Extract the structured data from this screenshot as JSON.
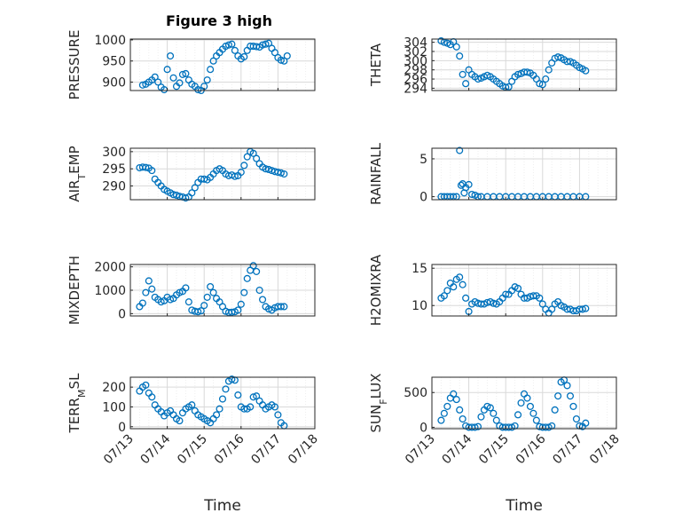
{
  "title": "Figure 3 high",
  "xlabel": "Time",
  "colors": {
    "marker": "#0072BD",
    "axis": "#262626",
    "grid": "#d9d9d9"
  },
  "chart_data": [
    {
      "type": "scatter",
      "ylabel": "PRESSURE",
      "yticks": [
        "900",
        "950",
        "1000"
      ],
      "ylim": [
        880,
        1002
      ],
      "yticks_values": [
        900,
        950,
        1000
      ],
      "x": [
        "07/13 08:00",
        "07/13 10:00",
        "07/13 12:00",
        "07/13 14:00",
        "07/13 16:00",
        "07/13 18:00",
        "07/13 20:00",
        "07/13 22:00",
        "07/14 00:00",
        "07/14 02:00",
        "07/14 04:00",
        "07/14 06:00",
        "07/14 08:00",
        "07/14 10:00",
        "07/14 12:00",
        "07/14 14:00",
        "07/14 16:00",
        "07/14 18:00",
        "07/14 20:00",
        "07/14 22:00",
        "07/15 00:00",
        "07/15 02:00",
        "07/15 04:00",
        "07/15 06:00",
        "07/15 08:00",
        "07/15 10:00",
        "07/15 12:00",
        "07/15 14:00",
        "07/15 16:00",
        "07/15 18:00",
        "07/15 20:00",
        "07/15 22:00",
        "07/16 00:00",
        "07/16 02:00",
        "07/16 04:00",
        "07/16 06:00",
        "07/16 08:00",
        "07/16 10:00",
        "07/16 12:00",
        "07/16 14:00",
        "07/16 16:00",
        "07/16 18:00",
        "07/16 20:00",
        "07/16 22:00",
        "07/17 00:00",
        "07/17 02:00",
        "07/17 04:00",
        "07/17 06:00"
      ],
      "y": [
        893,
        895,
        900,
        905,
        912,
        900,
        888,
        882,
        930,
        962,
        910,
        890,
        898,
        918,
        920,
        905,
        895,
        890,
        882,
        880,
        890,
        905,
        930,
        950,
        962,
        970,
        978,
        985,
        988,
        990,
        975,
        962,
        955,
        960,
        975,
        985,
        985,
        984,
        983,
        988,
        990,
        992,
        980,
        970,
        958,
        952,
        950,
        962
      ]
    },
    {
      "type": "scatter",
      "ylabel": "THETA",
      "yticks": [
        "294",
        "296",
        "298",
        "300",
        "302",
        "304"
      ],
      "ylim": [
        293.5,
        304.7
      ],
      "yticks_values": [
        294,
        296,
        298,
        300,
        302,
        304
      ],
      "x": [
        "07/13 06:00",
        "07/13 08:00",
        "07/13 10:00",
        "07/13 12:00",
        "07/13 14:00",
        "07/13 16:00",
        "07/13 18:00",
        "07/13 20:00",
        "07/13 22:00",
        "07/14 00:00",
        "07/14 02:00",
        "07/14 04:00",
        "07/14 06:00",
        "07/14 08:00",
        "07/14 10:00",
        "07/14 12:00",
        "07/14 14:00",
        "07/14 16:00",
        "07/14 18:00",
        "07/14 20:00",
        "07/14 22:00",
        "07/15 00:00",
        "07/15 02:00",
        "07/15 04:00",
        "07/15 06:00",
        "07/15 08:00",
        "07/15 10:00",
        "07/15 12:00",
        "07/15 14:00",
        "07/15 16:00",
        "07/15 18:00",
        "07/15 20:00",
        "07/15 22:00",
        "07/16 00:00",
        "07/16 02:00",
        "07/16 04:00",
        "07/16 06:00",
        "07/16 08:00",
        "07/16 10:00",
        "07/16 12:00",
        "07/16 14:00",
        "07/16 16:00",
        "07/16 18:00",
        "07/16 20:00",
        "07/16 22:00",
        "07/17 00:00",
        "07/17 02:00",
        "07/17 04:00"
      ],
      "y": [
        304.3,
        304,
        303.8,
        303.5,
        304.1,
        303,
        301,
        297,
        295,
        298,
        297,
        296.5,
        296,
        296.2,
        296.5,
        296.8,
        296.5,
        296,
        295.5,
        295,
        294.5,
        294.2,
        294.3,
        295.5,
        296.5,
        297,
        297.2,
        297.5,
        297.5,
        297.3,
        296.8,
        296,
        295,
        294.8,
        296,
        298,
        299.5,
        300.5,
        300.8,
        300.6,
        300.2,
        299.8,
        299.8,
        299.5,
        299,
        298.5,
        298.2,
        297.8
      ]
    },
    {
      "type": "scatter",
      "ylabel": "AIR_TEMP",
      "yticks": [
        "290",
        "295",
        "300"
      ],
      "ylim": [
        286,
        301
      ],
      "yticks_values": [
        290,
        295,
        300
      ],
      "x": [
        "07/13 06:00",
        "07/13 08:00",
        "07/13 10:00",
        "07/13 12:00",
        "07/13 14:00",
        "07/13 16:00",
        "07/13 18:00",
        "07/13 20:00",
        "07/13 22:00",
        "07/14 00:00",
        "07/14 02:00",
        "07/14 04:00",
        "07/14 06:00",
        "07/14 08:00",
        "07/14 10:00",
        "07/14 12:00",
        "07/14 14:00",
        "07/14 16:00",
        "07/14 18:00",
        "07/14 20:00",
        "07/14 22:00",
        "07/15 00:00",
        "07/15 02:00",
        "07/15 04:00",
        "07/15 06:00",
        "07/15 08:00",
        "07/15 10:00",
        "07/15 12:00",
        "07/15 14:00",
        "07/15 16:00",
        "07/15 18:00",
        "07/15 20:00",
        "07/15 22:00",
        "07/16 00:00",
        "07/16 02:00",
        "07/16 04:00",
        "07/16 06:00",
        "07/16 08:00",
        "07/16 10:00",
        "07/16 12:00",
        "07/16 14:00",
        "07/16 16:00",
        "07/16 18:00",
        "07/16 20:00",
        "07/16 22:00",
        "07/17 00:00",
        "07/17 02:00",
        "07/17 04:00"
      ],
      "y": [
        295.3,
        295.5,
        295.4,
        295.2,
        294.5,
        292,
        291,
        290,
        289,
        288.5,
        288,
        287.5,
        287.3,
        287,
        286.8,
        286.5,
        286.8,
        288,
        289.5,
        291,
        292,
        292,
        291.8,
        292.5,
        293.5,
        294.5,
        295,
        294.5,
        293.5,
        293,
        293.2,
        292.8,
        293,
        294,
        296,
        298.5,
        300,
        299.5,
        298,
        296.5,
        295.5,
        295,
        294.8,
        294.5,
        294.2,
        294,
        293.8,
        293.5
      ]
    },
    {
      "type": "scatter",
      "ylabel": "RAINFALL",
      "yticks": [
        "0",
        "5"
      ],
      "ylim": [
        -0.4,
        6.4
      ],
      "yticks_values": [
        0,
        5
      ],
      "x": [
        "07/13 06:00",
        "07/13 08:00",
        "07/13 10:00",
        "07/13 12:00",
        "07/13 14:00",
        "07/13 16:00",
        "07/13 18:00",
        "07/13 19:00",
        "07/13 20:00",
        "07/13 21:00",
        "07/13 22:00",
        "07/14 00:00",
        "07/14 02:00",
        "07/14 04:00",
        "07/14 06:00",
        "07/14 08:00",
        "07/14 12:00",
        "07/14 16:00",
        "07/14 20:00",
        "07/15 00:00",
        "07/15 04:00",
        "07/15 08:00",
        "07/15 12:00",
        "07/15 16:00",
        "07/15 20:00",
        "07/16 00:00",
        "07/16 04:00",
        "07/16 08:00",
        "07/16 12:00",
        "07/16 16:00",
        "07/16 20:00",
        "07/17 00:00",
        "07/17 04:00"
      ],
      "y": [
        0,
        0,
        0,
        0,
        0,
        0,
        6.1,
        1.5,
        1.7,
        0.5,
        1.2,
        1.6,
        0.3,
        0.2,
        0,
        0,
        0,
        0,
        0,
        0,
        0,
        0,
        0,
        0,
        0,
        0,
        0,
        0,
        0,
        0,
        0,
        0,
        0
      ]
    },
    {
      "type": "scatter",
      "ylabel": "MIXDEPTH",
      "yticks": [
        "0",
        "1000",
        "2000"
      ],
      "ylim": [
        -100,
        2100
      ],
      "yticks_values": [
        0,
        1000,
        2000
      ],
      "x": [
        "07/13 06:00",
        "07/13 08:00",
        "07/13 10:00",
        "07/13 12:00",
        "07/13 14:00",
        "07/13 16:00",
        "07/13 18:00",
        "07/13 20:00",
        "07/13 22:00",
        "07/14 00:00",
        "07/14 02:00",
        "07/14 04:00",
        "07/14 06:00",
        "07/14 08:00",
        "07/14 10:00",
        "07/14 12:00",
        "07/14 14:00",
        "07/14 16:00",
        "07/14 18:00",
        "07/14 20:00",
        "07/14 22:00",
        "07/15 00:00",
        "07/15 02:00",
        "07/15 04:00",
        "07/15 06:00",
        "07/15 08:00",
        "07/15 10:00",
        "07/15 12:00",
        "07/15 14:00",
        "07/15 16:00",
        "07/15 18:00",
        "07/15 20:00",
        "07/15 22:00",
        "07/16 00:00",
        "07/16 02:00",
        "07/16 04:00",
        "07/16 06:00",
        "07/16 08:00",
        "07/16 10:00",
        "07/16 12:00",
        "07/16 14:00",
        "07/16 16:00",
        "07/16 18:00",
        "07/16 20:00",
        "07/16 22:00",
        "07/17 00:00",
        "07/17 02:00",
        "07/17 04:00"
      ],
      "y": [
        300,
        450,
        900,
        1400,
        1050,
        700,
        600,
        500,
        550,
        700,
        600,
        650,
        800,
        900,
        950,
        1100,
        500,
        150,
        100,
        80,
        120,
        350,
        700,
        1150,
        900,
        650,
        500,
        300,
        100,
        50,
        60,
        80,
        150,
        400,
        900,
        1500,
        1850,
        2050,
        1800,
        1000,
        600,
        300,
        200,
        150,
        250,
        300,
        300,
        300
      ]
    },
    {
      "type": "scatter",
      "ylabel": "H2OMIXRA",
      "yticks": [
        "10",
        "15"
      ],
      "ylim": [
        8.6,
        15.5
      ],
      "yticks_values": [
        10,
        15
      ],
      "x": [
        "07/13 06:00",
        "07/13 08:00",
        "07/13 10:00",
        "07/13 12:00",
        "07/13 14:00",
        "07/13 16:00",
        "07/13 18:00",
        "07/13 20:00",
        "07/13 22:00",
        "07/14 00:00",
        "07/14 02:00",
        "07/14 04:00",
        "07/14 06:00",
        "07/14 08:00",
        "07/14 10:00",
        "07/14 12:00",
        "07/14 14:00",
        "07/14 16:00",
        "07/14 18:00",
        "07/14 20:00",
        "07/14 22:00",
        "07/15 00:00",
        "07/15 02:00",
        "07/15 04:00",
        "07/15 06:00",
        "07/15 08:00",
        "07/15 10:00",
        "07/15 12:00",
        "07/15 14:00",
        "07/15 16:00",
        "07/15 18:00",
        "07/15 20:00",
        "07/15 22:00",
        "07/16 00:00",
        "07/16 02:00",
        "07/16 04:00",
        "07/16 06:00",
        "07/16 08:00",
        "07/16 10:00",
        "07/16 12:00",
        "07/16 14:00",
        "07/16 16:00",
        "07/16 18:00",
        "07/16 20:00",
        "07/16 22:00",
        "07/17 00:00",
        "07/17 02:00",
        "07/17 04:00"
      ],
      "y": [
        11,
        11.3,
        12,
        13,
        12.5,
        13.5,
        13.8,
        12.8,
        11,
        9.2,
        10.2,
        10.5,
        10.3,
        10.2,
        10.2,
        10.4,
        10.5,
        10.3,
        10.2,
        10.5,
        11,
        11.5,
        11.5,
        12,
        12.5,
        12.3,
        11.5,
        11,
        11,
        11.2,
        11.3,
        11.3,
        11,
        10.2,
        9.5,
        9,
        9.5,
        10.2,
        10.5,
        10,
        9.8,
        9.5,
        9.5,
        9.3,
        9.3,
        9.5,
        9.5,
        9.6
      ]
    },
    {
      "type": "scatter",
      "ylabel": "TERR_MSL",
      "yticks": [
        "0",
        "100",
        "200"
      ],
      "ylim": [
        -10,
        250
      ],
      "yticks_values": [
        0,
        100,
        200
      ],
      "x": [
        "07/13 06:00",
        "07/13 08:00",
        "07/13 10:00",
        "07/13 12:00",
        "07/13 14:00",
        "07/13 16:00",
        "07/13 18:00",
        "07/13 20:00",
        "07/13 22:00",
        "07/14 00:00",
        "07/14 02:00",
        "07/14 04:00",
        "07/14 06:00",
        "07/14 08:00",
        "07/14 10:00",
        "07/14 12:00",
        "07/14 14:00",
        "07/14 16:00",
        "07/14 18:00",
        "07/14 20:00",
        "07/14 22:00",
        "07/15 00:00",
        "07/15 02:00",
        "07/15 04:00",
        "07/15 06:00",
        "07/15 08:00",
        "07/15 10:00",
        "07/15 12:00",
        "07/15 14:00",
        "07/15 16:00",
        "07/15 18:00",
        "07/15 20:00",
        "07/15 22:00",
        "07/16 00:00",
        "07/16 02:00",
        "07/16 04:00",
        "07/16 06:00",
        "07/16 08:00",
        "07/16 10:00",
        "07/16 12:00",
        "07/16 14:00",
        "07/16 16:00",
        "07/16 18:00",
        "07/16 20:00",
        "07/16 22:00",
        "07/17 00:00",
        "07/17 02:00",
        "07/17 04:00"
      ],
      "y": [
        180,
        200,
        210,
        170,
        150,
        110,
        90,
        75,
        55,
        70,
        80,
        60,
        40,
        30,
        70,
        90,
        100,
        110,
        80,
        60,
        50,
        40,
        30,
        20,
        40,
        60,
        90,
        140,
        190,
        230,
        240,
        235,
        160,
        100,
        90,
        90,
        100,
        150,
        155,
        130,
        110,
        90,
        100,
        110,
        100,
        60,
        20,
        5
      ]
    },
    {
      "type": "scatter",
      "ylabel": "SUN_FLUX",
      "yticks": [
        "0",
        "500"
      ],
      "ylim": [
        -20,
        720
      ],
      "yticks_values": [
        0,
        500
      ],
      "x": [
        "07/13 06:00",
        "07/13 08:00",
        "07/13 10:00",
        "07/13 12:00",
        "07/13 14:00",
        "07/13 16:00",
        "07/13 18:00",
        "07/13 20:00",
        "07/13 22:00",
        "07/14 00:00",
        "07/14 02:00",
        "07/14 04:00",
        "07/14 06:00",
        "07/14 08:00",
        "07/14 10:00",
        "07/14 12:00",
        "07/14 14:00",
        "07/14 16:00",
        "07/14 18:00",
        "07/14 20:00",
        "07/14 22:00",
        "07/15 00:00",
        "07/15 02:00",
        "07/15 04:00",
        "07/15 06:00",
        "07/15 08:00",
        "07/15 10:00",
        "07/15 12:00",
        "07/15 14:00",
        "07/15 16:00",
        "07/15 18:00",
        "07/15 20:00",
        "07/15 22:00",
        "07/16 00:00",
        "07/16 02:00",
        "07/16 04:00",
        "07/16 06:00",
        "07/16 08:00",
        "07/16 10:00",
        "07/16 12:00",
        "07/16 14:00",
        "07/16 16:00",
        "07/16 18:00",
        "07/16 20:00",
        "07/16 22:00",
        "07/17 00:00",
        "07/17 02:00",
        "07/17 04:00"
      ],
      "y": [
        100,
        200,
        300,
        420,
        480,
        400,
        250,
        120,
        20,
        0,
        0,
        0,
        10,
        150,
        250,
        300,
        280,
        200,
        100,
        20,
        0,
        0,
        0,
        0,
        20,
        180,
        350,
        480,
        420,
        300,
        200,
        100,
        10,
        0,
        0,
        0,
        20,
        250,
        450,
        650,
        680,
        600,
        450,
        300,
        120,
        20,
        10,
        60
      ]
    }
  ],
  "xticks": [
    "07/13",
    "07/14",
    "07/15",
    "07/16",
    "07/17",
    "07/18"
  ]
}
